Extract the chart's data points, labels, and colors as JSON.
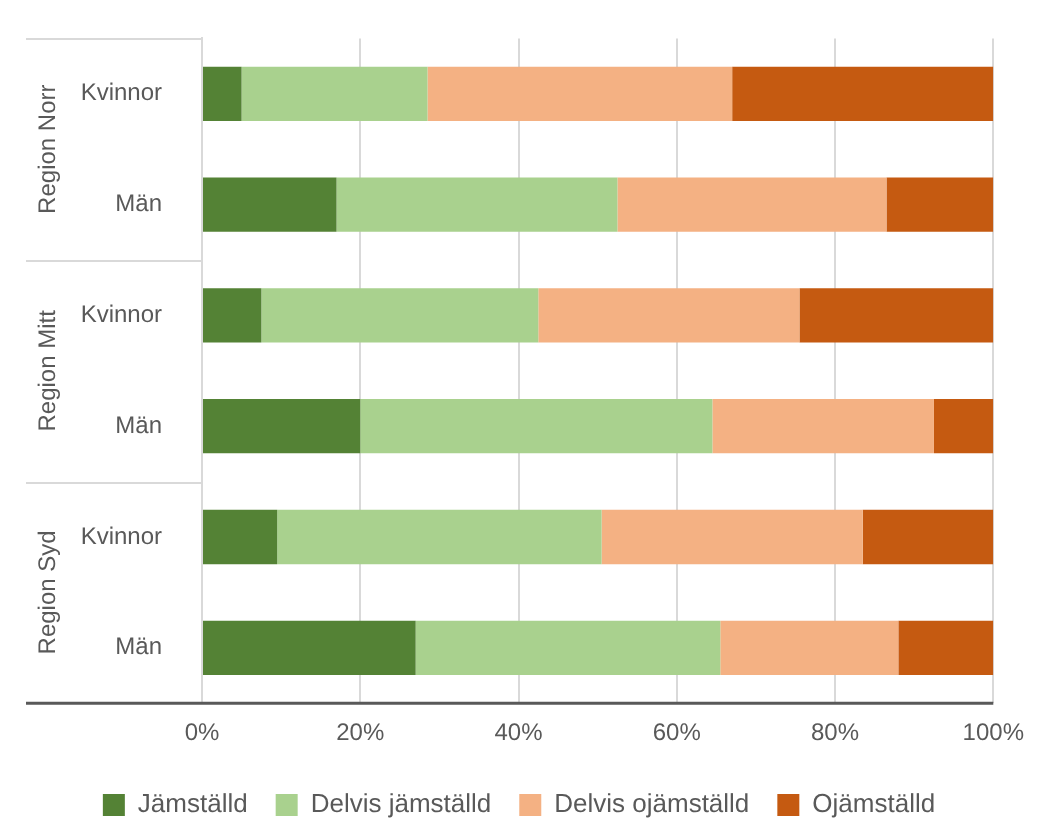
{
  "chart_data": {
    "type": "bar",
    "orientation": "horizontal",
    "stacked": true,
    "categories": [
      "Kvinnor",
      "Män",
      "Kvinnor",
      "Män",
      "Kvinnor",
      "Män"
    ],
    "annotations": [
      "Region Norr",
      "Region Mitt",
      "Region Syd"
    ],
    "series": [
      {
        "name": "Jämställd",
        "color": "#548235",
        "values": [
          5,
          17,
          7.5,
          20,
          9.5,
          27
        ]
      },
      {
        "name": "Delvis jämställd",
        "color": "#a9d18e",
        "values": [
          23.5,
          35.5,
          35,
          44.5,
          41,
          38.5
        ]
      },
      {
        "name": "Delvis ojämställd",
        "color": "#f4b183",
        "values": [
          38.5,
          34,
          33,
          28,
          33,
          22.5
        ]
      },
      {
        "name": "Ojämställd",
        "color": "#c55a11",
        "values": [
          33,
          13.5,
          24.5,
          7.5,
          16.5,
          12
        ]
      }
    ],
    "xlim": [
      0,
      100
    ],
    "xticks": [
      {
        "value": 0,
        "label": "0%"
      },
      {
        "value": 20,
        "label": "20%"
      },
      {
        "value": 40,
        "label": "40%"
      },
      {
        "value": 60,
        "label": "60%"
      },
      {
        "value": 80,
        "label": "80%"
      },
      {
        "value": 100,
        "label": "100%"
      }
    ],
    "grid": "x",
    "legend": "bottom"
  }
}
